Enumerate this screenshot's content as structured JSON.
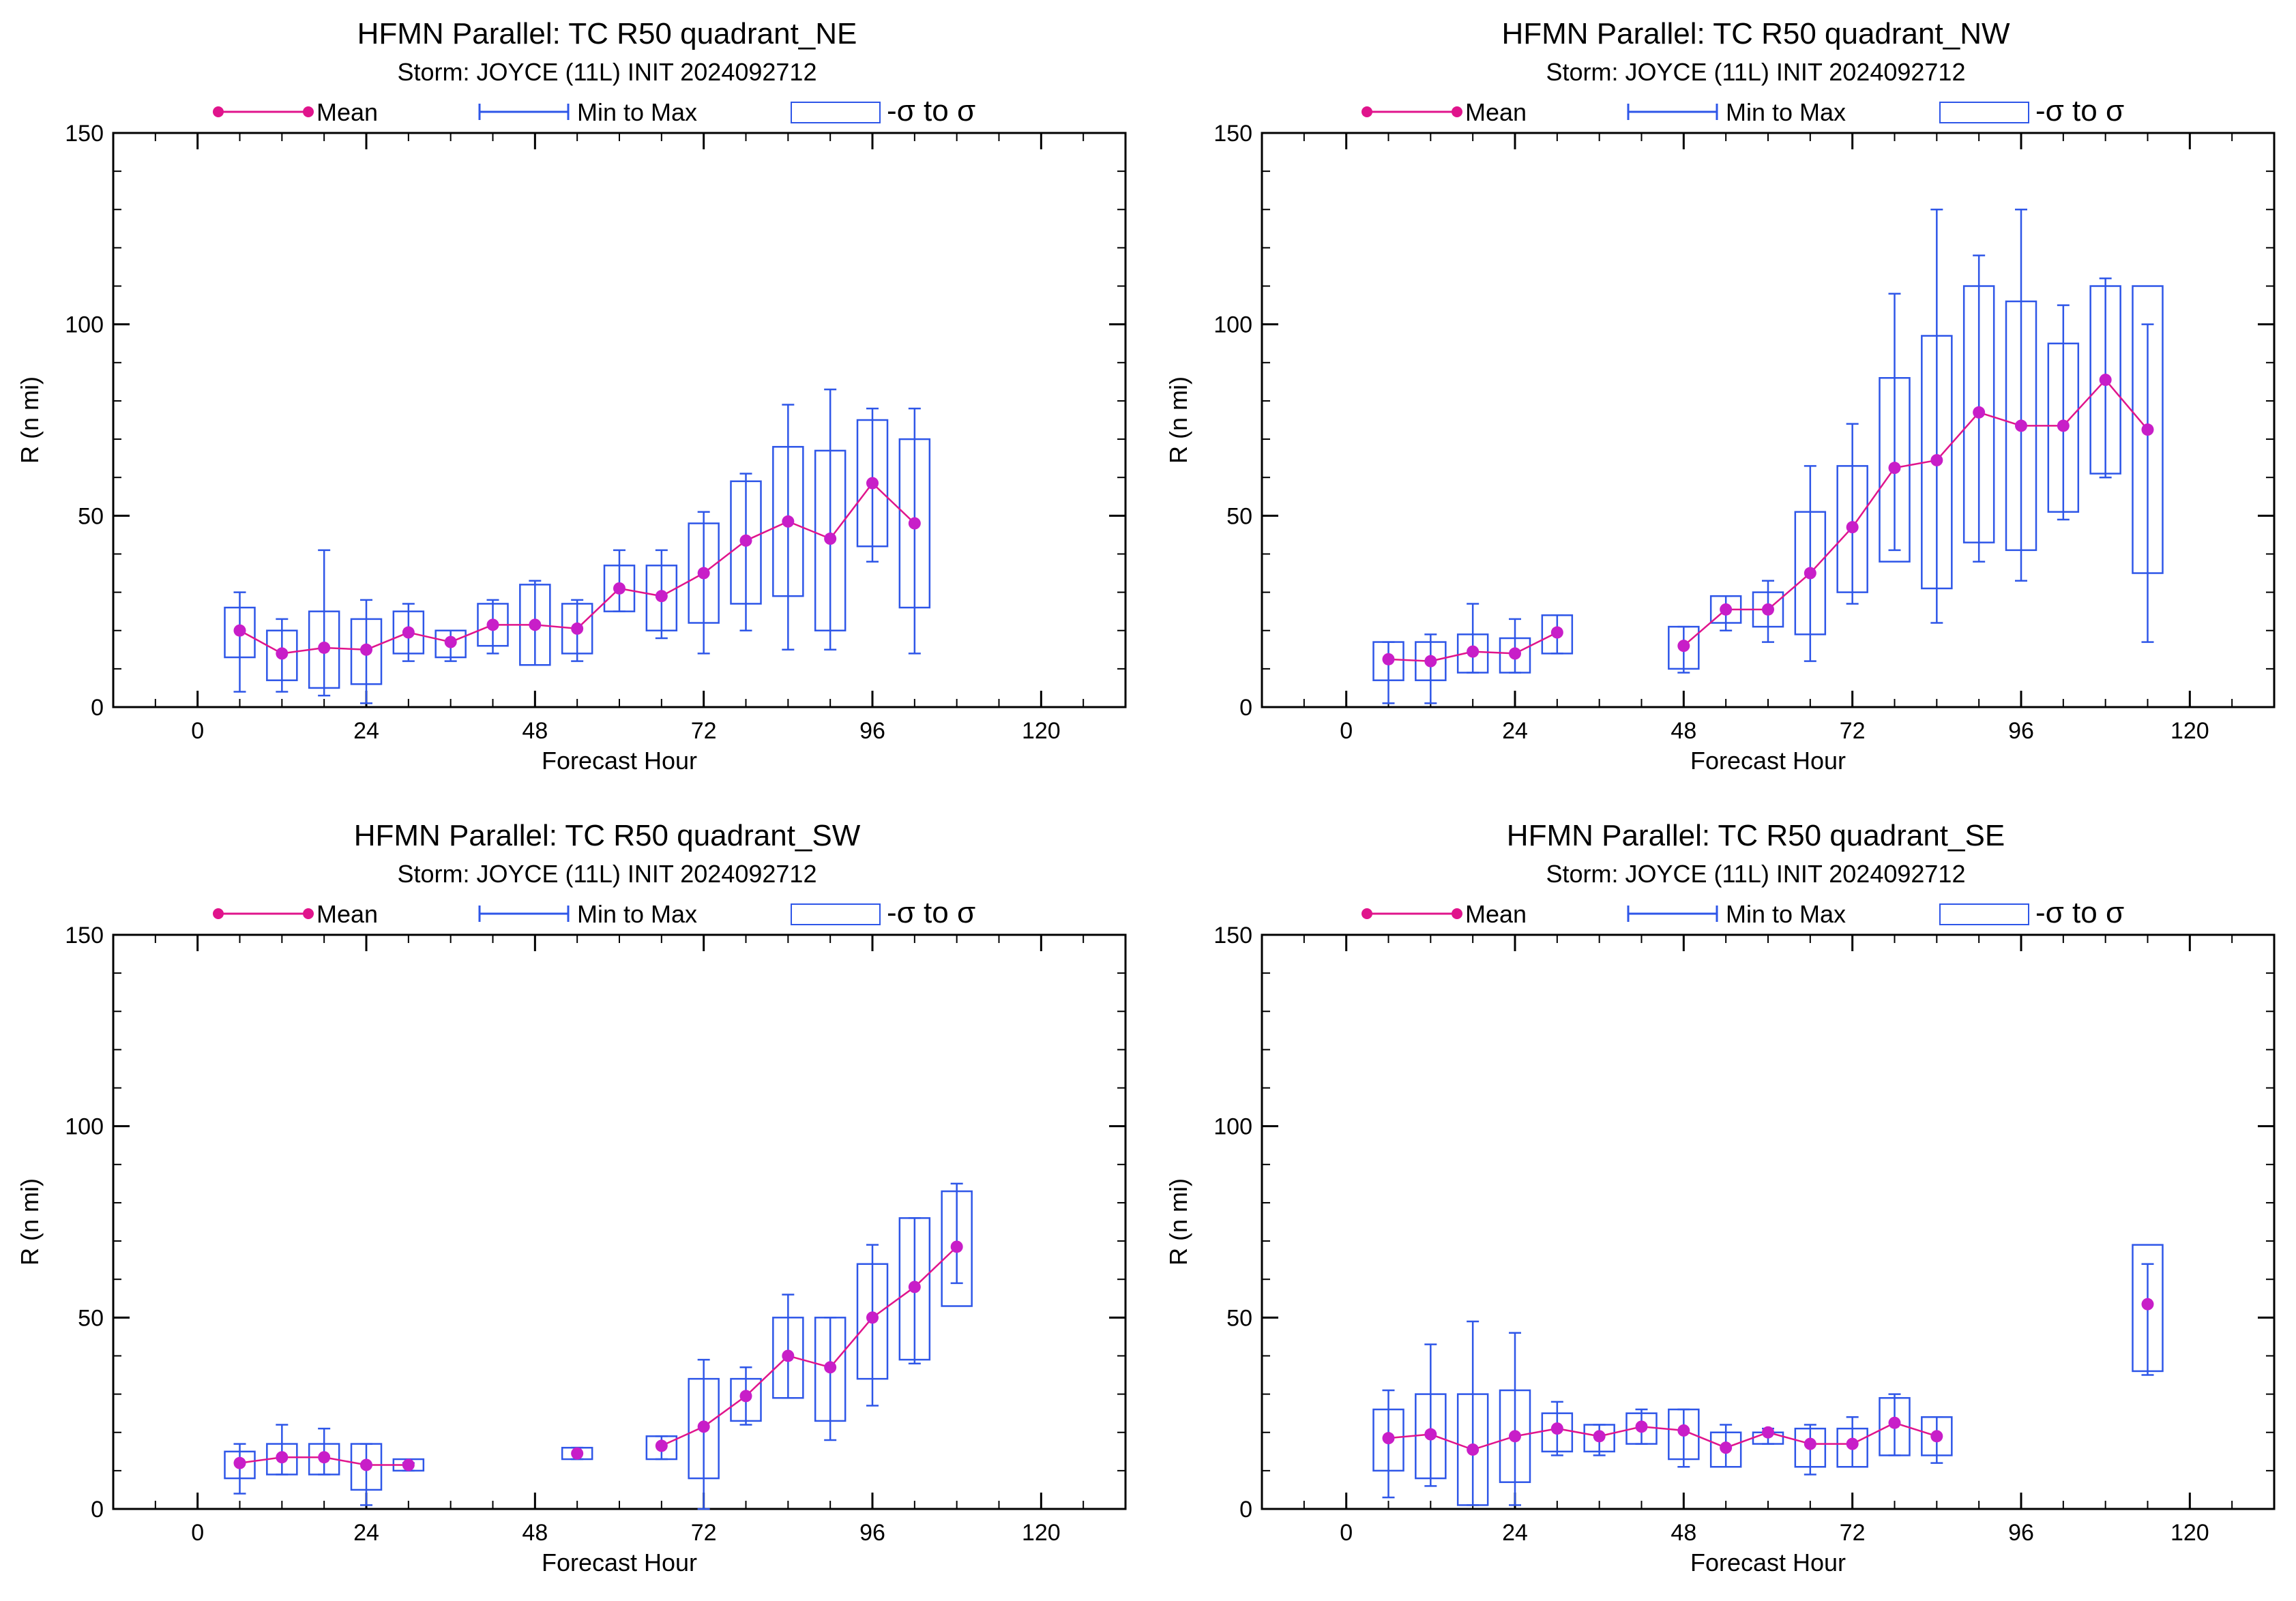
{
  "legend": {
    "mean": "Mean",
    "range": "Min to Max",
    "sigma": "-σ to σ"
  },
  "colors": {
    "mean": "#e0148c",
    "mean_marker": "#c81ec8",
    "range": "#2e56e8",
    "axes": "#000000"
  },
  "chart_data": [
    {
      "type": "boxplot",
      "title": "HFMN Parallel: TC  R50 quadrant_NE",
      "subtitle": "Storm: JOYCE (11L) INIT 2024092712",
      "xlabel": "Forecast Hour",
      "ylabel": "R (n mi)",
      "xlim": [
        -12,
        132
      ],
      "ylim": [
        0,
        150
      ],
      "xticks": [
        0,
        24,
        48,
        72,
        96,
        120
      ],
      "yticks": [
        0,
        50,
        100,
        150
      ],
      "points": [
        {
          "x": 6,
          "mean": 20,
          "min": 4,
          "max": 30,
          "lo": 13,
          "hi": 26
        },
        {
          "x": 12,
          "mean": 14,
          "min": 4,
          "max": 23,
          "lo": 7,
          "hi": 20
        },
        {
          "x": 18,
          "mean": 15.5,
          "min": 3,
          "max": 41,
          "lo": 5,
          "hi": 25
        },
        {
          "x": 24,
          "mean": 15,
          "min": 1,
          "max": 28,
          "lo": 6,
          "hi": 23
        },
        {
          "x": 30,
          "mean": 19.5,
          "min": 12,
          "max": 27,
          "lo": 14,
          "hi": 25
        },
        {
          "x": 36,
          "mean": 17,
          "min": 12,
          "max": 20,
          "lo": 13,
          "hi": 20
        },
        {
          "x": 42,
          "mean": 21.5,
          "min": 14,
          "max": 28,
          "lo": 16,
          "hi": 27
        },
        {
          "x": 48,
          "mean": 21.5,
          "min": 11,
          "max": 33,
          "lo": 11,
          "hi": 32
        },
        {
          "x": 54,
          "mean": 20.5,
          "min": 12,
          "max": 28,
          "lo": 14,
          "hi": 27
        },
        {
          "x": 60,
          "mean": 31,
          "min": 25,
          "max": 41,
          "lo": 25,
          "hi": 37
        },
        {
          "x": 66,
          "mean": 29,
          "min": 18,
          "max": 41,
          "lo": 20,
          "hi": 37
        },
        {
          "x": 72,
          "mean": 35,
          "min": 14,
          "max": 51,
          "lo": 22,
          "hi": 48
        },
        {
          "x": 78,
          "mean": 43.5,
          "min": 20,
          "max": 61,
          "lo": 27,
          "hi": 59
        },
        {
          "x": 84,
          "mean": 48.5,
          "min": 15,
          "max": 79,
          "lo": 29,
          "hi": 68
        },
        {
          "x": 90,
          "mean": 44,
          "min": 15,
          "max": 83,
          "lo": 20,
          "hi": 67
        },
        {
          "x": 96,
          "mean": 58.5,
          "min": 38,
          "max": 78,
          "lo": 42,
          "hi": 75
        },
        {
          "x": 102,
          "mean": 48,
          "min": 14,
          "max": 78,
          "lo": 26,
          "hi": 70
        }
      ]
    },
    {
      "type": "boxplot",
      "title": "HFMN Parallel: TC  R50 quadrant_NW",
      "subtitle": "Storm: JOYCE (11L) INIT 2024092712",
      "xlabel": "Forecast Hour",
      "ylabel": "R (n mi)",
      "xlim": [
        -12,
        132
      ],
      "ylim": [
        0,
        150
      ],
      "xticks": [
        0,
        24,
        48,
        72,
        96,
        120
      ],
      "yticks": [
        0,
        50,
        100,
        150
      ],
      "points": [
        {
          "x": 6,
          "mean": 12.5,
          "min": 1,
          "max": 17,
          "lo": 7,
          "hi": 17
        },
        {
          "x": 12,
          "mean": 12,
          "min": 1,
          "max": 19,
          "lo": 7,
          "hi": 17
        },
        {
          "x": 18,
          "mean": 14.5,
          "min": 9,
          "max": 27,
          "lo": 9,
          "hi": 19
        },
        {
          "x": 24,
          "mean": 14,
          "min": 9,
          "max": 23,
          "lo": 9,
          "hi": 18
        },
        {
          "x": 30,
          "mean": 19.5,
          "min": 14,
          "max": 24,
          "lo": 14,
          "hi": 24
        },
        {
          "x": 48,
          "mean": 16,
          "min": 9,
          "max": 21,
          "lo": 10,
          "hi": 21
        },
        {
          "x": 54,
          "mean": 25.5,
          "min": 20,
          "max": 29,
          "lo": 22,
          "hi": 29
        },
        {
          "x": 60,
          "mean": 25.5,
          "min": 17,
          "max": 33,
          "lo": 21,
          "hi": 30
        },
        {
          "x": 66,
          "mean": 35,
          "min": 12,
          "max": 63,
          "lo": 19,
          "hi": 51
        },
        {
          "x": 72,
          "mean": 47,
          "min": 27,
          "max": 74,
          "lo": 30,
          "hi": 63
        },
        {
          "x": 78,
          "mean": 62.5,
          "min": 41,
          "max": 108,
          "lo": 38,
          "hi": 86
        },
        {
          "x": 84,
          "mean": 64.5,
          "min": 22,
          "max": 130,
          "lo": 31,
          "hi": 97
        },
        {
          "x": 90,
          "mean": 77,
          "min": 38,
          "max": 118,
          "lo": 43,
          "hi": 110
        },
        {
          "x": 96,
          "mean": 73.5,
          "min": 33,
          "max": 130,
          "lo": 41,
          "hi": 106
        },
        {
          "x": 102,
          "mean": 73.5,
          "min": 49,
          "max": 105,
          "lo": 51,
          "hi": 95
        },
        {
          "x": 108,
          "mean": 85.5,
          "min": 60,
          "max": 112,
          "lo": 61,
          "hi": 110
        },
        {
          "x": 114,
          "mean": 72.5,
          "min": 17,
          "max": 100,
          "lo": 35,
          "hi": 110
        }
      ]
    },
    {
      "type": "boxplot",
      "title": "HFMN Parallel: TC  R50 quadrant_SW",
      "subtitle": "Storm: JOYCE (11L) INIT 2024092712",
      "xlabel": "Forecast Hour",
      "ylabel": "R (n mi)",
      "xlim": [
        -12,
        132
      ],
      "ylim": [
        0,
        150
      ],
      "xticks": [
        0,
        24,
        48,
        72,
        96,
        120
      ],
      "yticks": [
        0,
        50,
        100,
        150
      ],
      "points": [
        {
          "x": 6,
          "mean": 12,
          "min": 4,
          "max": 17,
          "lo": 8,
          "hi": 15
        },
        {
          "x": 12,
          "mean": 13.5,
          "min": 9,
          "max": 22,
          "lo": 9,
          "hi": 17
        },
        {
          "x": 18,
          "mean": 13.5,
          "min": 9,
          "max": 21,
          "lo": 9,
          "hi": 17
        },
        {
          "x": 24,
          "mean": 11.5,
          "min": 1,
          "max": 17,
          "lo": 5,
          "hi": 17
        },
        {
          "x": 30,
          "mean": 11.5,
          "min": 10,
          "max": 12,
          "lo": 10,
          "hi": 13
        },
        {
          "x": 54,
          "mean": 14.5,
          "min": 13,
          "max": 16,
          "lo": 13,
          "hi": 16
        },
        {
          "x": 66,
          "mean": 16.5,
          "min": 13,
          "max": 19,
          "lo": 13,
          "hi": 19
        },
        {
          "x": 72,
          "mean": 21.5,
          "min": 0,
          "max": 39,
          "lo": 8,
          "hi": 34
        },
        {
          "x": 78,
          "mean": 29.5,
          "min": 22,
          "max": 37,
          "lo": 23,
          "hi": 34
        },
        {
          "x": 84,
          "mean": 40,
          "min": 29,
          "max": 56,
          "lo": 29,
          "hi": 50
        },
        {
          "x": 90,
          "mean": 37,
          "min": 18,
          "max": 50,
          "lo": 23,
          "hi": 50
        },
        {
          "x": 96,
          "mean": 50,
          "min": 27,
          "max": 69,
          "lo": 34,
          "hi": 64
        },
        {
          "x": 102,
          "mean": 58,
          "min": 38,
          "max": 76,
          "lo": 39,
          "hi": 76
        },
        {
          "x": 108,
          "mean": 68.5,
          "min": 59,
          "max": 85,
          "lo": 53,
          "hi": 83
        }
      ]
    },
    {
      "type": "boxplot",
      "title": "HFMN Parallel: TC  R50 quadrant_SE",
      "subtitle": "Storm: JOYCE (11L) INIT 2024092712",
      "xlabel": "Forecast Hour",
      "ylabel": "R (n mi)",
      "xlim": [
        -12,
        132
      ],
      "ylim": [
        0,
        150
      ],
      "xticks": [
        0,
        24,
        48,
        72,
        96,
        120
      ],
      "yticks": [
        0,
        50,
        100,
        150
      ],
      "points": [
        {
          "x": 6,
          "mean": 18.5,
          "min": 3,
          "max": 31,
          "lo": 10,
          "hi": 26
        },
        {
          "x": 12,
          "mean": 19.5,
          "min": 6,
          "max": 43,
          "lo": 8,
          "hi": 30
        },
        {
          "x": 18,
          "mean": 15.5,
          "min": 1,
          "max": 49,
          "lo": 1,
          "hi": 30
        },
        {
          "x": 24,
          "mean": 19,
          "min": 1,
          "max": 46,
          "lo": 7,
          "hi": 31
        },
        {
          "x": 30,
          "mean": 21,
          "min": 14,
          "max": 28,
          "lo": 15,
          "hi": 25
        },
        {
          "x": 36,
          "mean": 19,
          "min": 14,
          "max": 22,
          "lo": 15,
          "hi": 22
        },
        {
          "x": 42,
          "mean": 21.5,
          "min": 17,
          "max": 26,
          "lo": 17,
          "hi": 25
        },
        {
          "x": 48,
          "mean": 20.5,
          "min": 11,
          "max": 26,
          "lo": 13,
          "hi": 26
        },
        {
          "x": 54,
          "mean": 16,
          "min": 11,
          "max": 22,
          "lo": 11,
          "hi": 20
        },
        {
          "x": 60,
          "mean": 20,
          "min": 17,
          "max": 21,
          "lo": 17,
          "hi": 20
        },
        {
          "x": 66,
          "mean": 17,
          "min": 9,
          "max": 22,
          "lo": 11,
          "hi": 21
        },
        {
          "x": 72,
          "mean": 17,
          "min": 11,
          "max": 24,
          "lo": 11,
          "hi": 21
        },
        {
          "x": 78,
          "mean": 22.5,
          "min": 14,
          "max": 30,
          "lo": 14,
          "hi": 29
        },
        {
          "x": 84,
          "mean": 19,
          "min": 12,
          "max": 24,
          "lo": 14,
          "hi": 24
        },
        {
          "x": 114,
          "mean": 53.5,
          "min": 35,
          "max": 64,
          "lo": 36,
          "hi": 69
        }
      ]
    }
  ]
}
